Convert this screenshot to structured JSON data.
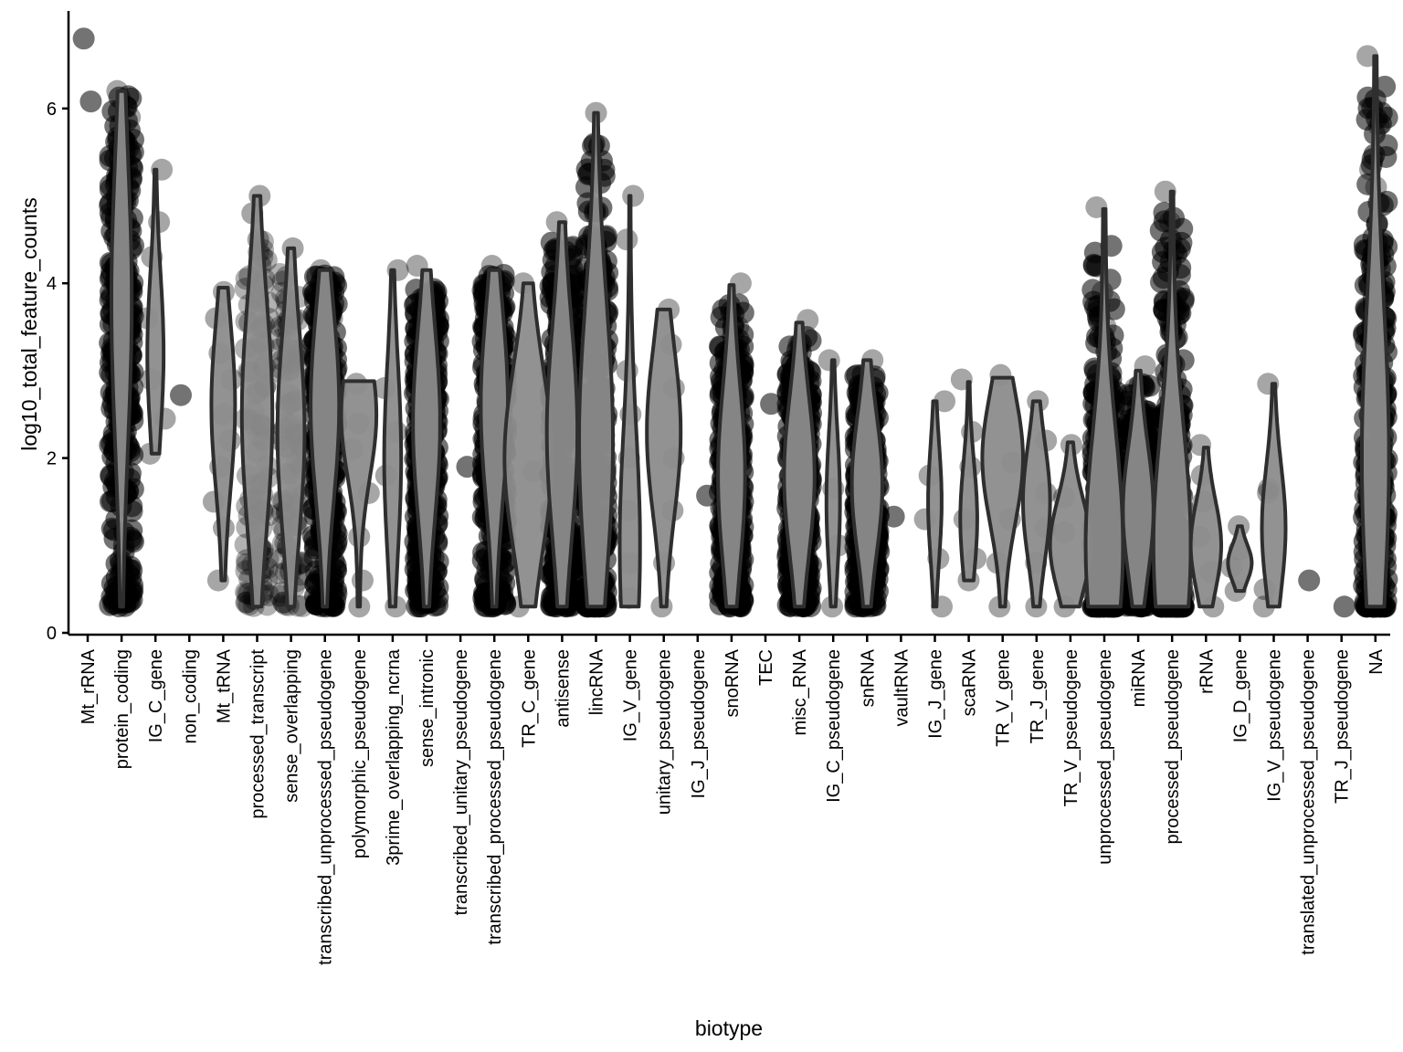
{
  "chart_data": {
    "type": "violin",
    "xlabel": "biotype",
    "ylabel": "log10_total_feature_counts",
    "ylim": [
      0,
      7.1
    ],
    "yticks": [
      0,
      2,
      4,
      6
    ],
    "grid": false,
    "legend": "none",
    "colors": {
      "violin_fill": "#8c8c8c",
      "violin_stroke": "#2e2e2e",
      "point": "#000000",
      "axis": "#000000"
    },
    "categories": [
      {
        "name": "Mt_rRNA",
        "min": 6.08,
        "max": 6.8,
        "peak": null,
        "width": 0,
        "density": "none",
        "points": [
          6.08,
          6.8
        ]
      },
      {
        "name": "protein_coding",
        "min": 0.3,
        "max": 6.2,
        "peak": 3.8,
        "width": 0.3,
        "density": "dense",
        "points": [
          6.2,
          5.9
        ]
      },
      {
        "name": "IG_C_gene",
        "min": 2.05,
        "max": 5.3,
        "peak": 3.2,
        "width": 0.24,
        "density": "sparse",
        "points": [
          5.3,
          4.7,
          4.3,
          3.6,
          2.9,
          2.45,
          2.05
        ]
      },
      {
        "name": "non_coding",
        "min": 2.72,
        "max": 2.72,
        "peak": null,
        "width": 0,
        "density": "none",
        "points": [
          2.72
        ]
      },
      {
        "name": "Mt_tRNA",
        "min": 0.6,
        "max": 3.95,
        "peak": 2.6,
        "width": 0.35,
        "density": "sparse",
        "points": [
          3.9,
          3.6,
          3.2,
          2.9,
          2.5,
          2.2,
          1.9,
          1.5,
          1.2,
          0.6
        ]
      },
      {
        "name": "processed_transcript",
        "min": 0.3,
        "max": 5.0,
        "peak": 2.5,
        "width": 0.45,
        "density": "medium",
        "points": [
          5.0,
          4.8,
          4.5,
          4.2,
          3.8
        ]
      },
      {
        "name": "sense_overlapping",
        "min": 0.3,
        "max": 4.4,
        "peak": 2.3,
        "width": 0.4,
        "density": "medium",
        "points": [
          4.4,
          3.6,
          3.0,
          2.2,
          1.4,
          0.7
        ]
      },
      {
        "name": "transcribed_unprocessed_pseudogene",
        "min": 0.3,
        "max": 4.15,
        "peak": 2.6,
        "width": 0.42,
        "density": "dense",
        "points": [
          4.15,
          3.6
        ]
      },
      {
        "name": "polymorphic_pseudogene",
        "min": 0.3,
        "max": 2.88,
        "peak": 2.5,
        "width": 0.52,
        "density": "sparse",
        "points": [
          2.85,
          2.4,
          2.1,
          1.6,
          1.1,
          0.6,
          0.3
        ]
      },
      {
        "name": "3prime_overlapping_ncrna",
        "min": 0.3,
        "max": 4.15,
        "peak": 2.0,
        "width": 0.25,
        "density": "sparse",
        "points": [
          4.15,
          2.8,
          2.3,
          1.8,
          0.3
        ]
      },
      {
        "name": "sense_intronic",
        "min": 0.3,
        "max": 4.15,
        "peak": 2.4,
        "width": 0.4,
        "density": "dense",
        "points": [
          4.2,
          3.6
        ]
      },
      {
        "name": "transcribed_unitary_pseudogene",
        "min": 1.9,
        "max": 1.9,
        "peak": null,
        "width": 0,
        "density": "none",
        "points": [
          1.9
        ]
      },
      {
        "name": "transcribed_processed_pseudogene",
        "min": 0.3,
        "max": 4.15,
        "peak": 2.6,
        "width": 0.4,
        "density": "dense",
        "points": [
          4.2,
          4.0,
          3.7
        ]
      },
      {
        "name": "TR_C_gene",
        "min": 0.3,
        "max": 4.0,
        "peak": 2.0,
        "width": 0.7,
        "density": "sparse",
        "points": [
          4.0,
          1.85,
          0.3
        ]
      },
      {
        "name": "antisense",
        "min": 0.3,
        "max": 4.7,
        "peak": 2.3,
        "width": 0.45,
        "density": "dense",
        "points": [
          4.7,
          4.4
        ]
      },
      {
        "name": "lincRNA",
        "min": 0.3,
        "max": 5.95,
        "peak": 2.2,
        "width": 0.5,
        "density": "dense",
        "points": [
          5.95,
          4.8,
          4.5
        ]
      },
      {
        "name": "IG_V_gene",
        "min": 0.3,
        "max": 5.0,
        "peak": 1.0,
        "width": 0.3,
        "density": "sparse",
        "points": [
          5.0,
          4.5,
          3.0,
          2.5,
          2.0,
          1.4,
          0.8,
          0.4
        ]
      },
      {
        "name": "unitary_pseudogene",
        "min": 0.3,
        "max": 3.7,
        "peak": 2.3,
        "width": 0.5,
        "density": "sparse",
        "points": [
          3.7,
          3.3,
          2.8,
          2.0,
          1.4,
          0.8,
          0.3
        ]
      },
      {
        "name": "IG_J_pseudogene",
        "min": 1.57,
        "max": 1.57,
        "peak": null,
        "width": 0,
        "density": "none",
        "points": [
          1.57
        ]
      },
      {
        "name": "snoRNA",
        "min": 0.3,
        "max": 3.98,
        "peak": 1.8,
        "width": 0.4,
        "density": "dense",
        "points": [
          4.0,
          3.5
        ]
      },
      {
        "name": "TEC",
        "min": 2.62,
        "max": 2.62,
        "peak": null,
        "width": 0,
        "density": "none",
        "points": [
          2.62
        ]
      },
      {
        "name": "misc_RNA",
        "min": 0.3,
        "max": 3.55,
        "peak": 1.8,
        "width": 0.45,
        "density": "dense",
        "points": [
          3.58,
          3.3
        ]
      },
      {
        "name": "IG_C_pseudogene",
        "min": 0.3,
        "max": 3.12,
        "peak": 1.5,
        "width": 0.2,
        "density": "sparse",
        "points": [
          3.12,
          1.65,
          1.0,
          0.3
        ]
      },
      {
        "name": "snRNA",
        "min": 0.3,
        "max": 3.12,
        "peak": 1.7,
        "width": 0.45,
        "density": "dense",
        "points": [
          3.12,
          2.8
        ]
      },
      {
        "name": "vaultRNA",
        "min": 1.33,
        "max": 1.33,
        "peak": null,
        "width": 0,
        "density": "none",
        "points": [
          1.33
        ]
      },
      {
        "name": "IG_J_gene",
        "min": 0.3,
        "max": 2.65,
        "peak": 1.5,
        "width": 0.2,
        "density": "sparse",
        "points": [
          2.65,
          1.8,
          1.3,
          0.85,
          0.3
        ]
      },
      {
        "name": "scaRNA",
        "min": 0.6,
        "max": 2.87,
        "peak": 1.3,
        "width": 0.25,
        "density": "sparse",
        "points": [
          2.9,
          2.3,
          1.9,
          1.3,
          0.85,
          0.6
        ]
      },
      {
        "name": "TR_V_gene",
        "min": 0.3,
        "max": 2.92,
        "peak": 2.0,
        "width": 0.6,
        "density": "sparse",
        "points": [
          2.95,
          1.95,
          1.3,
          0.8,
          0.3
        ]
      },
      {
        "name": "TR_J_gene",
        "min": 0.3,
        "max": 2.65,
        "peak": 1.5,
        "width": 0.4,
        "density": "sparse",
        "points": [
          2.65,
          2.2,
          1.6,
          1.2,
          0.8,
          0.3
        ]
      },
      {
        "name": "TR_V_pseudogene",
        "min": 0.3,
        "max": 2.18,
        "peak": 1.0,
        "width": 0.6,
        "density": "sparse",
        "points": [
          2.15,
          1.55,
          1.15,
          0.3
        ]
      },
      {
        "name": "unprocessed_pseudogene",
        "min": 0.3,
        "max": 4.85,
        "peak": 1.0,
        "width": 0.55,
        "density": "dense",
        "points": [
          4.87,
          3.9,
          3.5
        ]
      },
      {
        "name": "miRNA",
        "min": 0.3,
        "max": 3.0,
        "peak": 1.4,
        "width": 0.45,
        "density": "dense",
        "points": [
          3.05,
          2.8
        ]
      },
      {
        "name": "processed_pseudogene",
        "min": 0.3,
        "max": 5.05,
        "peak": 1.0,
        "width": 0.55,
        "density": "dense",
        "points": [
          5.05,
          4.7
        ]
      },
      {
        "name": "rRNA",
        "min": 0.3,
        "max": 2.12,
        "peak": 1.0,
        "width": 0.45,
        "density": "sparse",
        "points": [
          2.15,
          1.8,
          1.5,
          1.1,
          0.7,
          0.3
        ]
      },
      {
        "name": "IG_D_gene",
        "min": 0.48,
        "max": 1.22,
        "peak": 0.8,
        "width": 0.35,
        "density": "sparse",
        "points": [
          1.22,
          0.95,
          0.75,
          0.48
        ]
      },
      {
        "name": "IG_V_pseudogene",
        "min": 0.3,
        "max": 2.85,
        "peak": 1.2,
        "width": 0.35,
        "density": "sparse",
        "points": [
          2.85,
          1.65,
          1.6,
          0.5,
          0.3
        ]
      },
      {
        "name": "translated_unprocessed_pseudogene",
        "min": 0.6,
        "max": 0.6,
        "peak": null,
        "width": 0,
        "density": "none",
        "points": [
          0.6
        ]
      },
      {
        "name": "TR_J_pseudogene",
        "min": 0.3,
        "max": 0.3,
        "peak": null,
        "width": 0,
        "density": "none",
        "points": [
          0.3
        ]
      },
      {
        "name": "NA",
        "min": 0.3,
        "max": 6.6,
        "peak": 2.0,
        "width": 0.4,
        "density": "dense",
        "points": [
          6.6,
          5.8,
          5.3,
          5.1
        ]
      }
    ]
  }
}
